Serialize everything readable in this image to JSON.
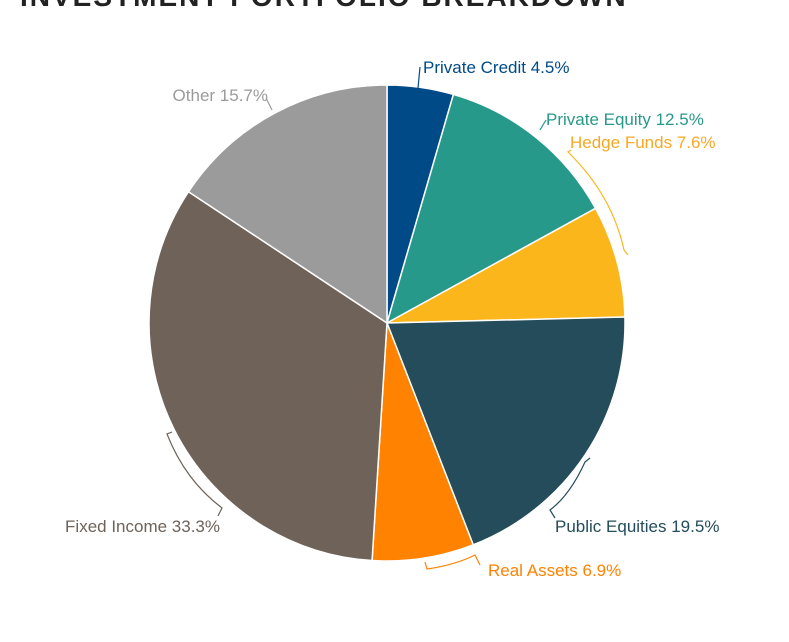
{
  "chart_data": {
    "type": "pie",
    "title": "INVESTMENT PORTFOLIO BREAKDOWN",
    "start_angle": "top",
    "direction": "clockwise",
    "slices": [
      {
        "label": "Private Credit",
        "value": 4.5,
        "text": "Private Credit 4.5%",
        "color": "#004a87"
      },
      {
        "label": "Private Equity",
        "value": 12.5,
        "text": "Private Equity 12.5%",
        "color": "#26998a"
      },
      {
        "label": "Hedge Funds",
        "value": 7.6,
        "text": "Hedge Funds 7.6%",
        "color": "#fbb61b"
      },
      {
        "label": "Public Equities",
        "value": 19.5,
        "text": "Public Equities 19.5%",
        "color": "#244c5a"
      },
      {
        "label": "Real Assets",
        "value": 6.9,
        "text": "Real Assets 6.9%",
        "color": "#ff8200"
      },
      {
        "label": "Fixed Income",
        "value": 33.3,
        "text": "Fixed Income 33.3%",
        "color": "#6e6259"
      },
      {
        "label": "Other",
        "value": 15.7,
        "text": "Other 15.7%",
        "color": "#9b9b9b"
      }
    ]
  }
}
